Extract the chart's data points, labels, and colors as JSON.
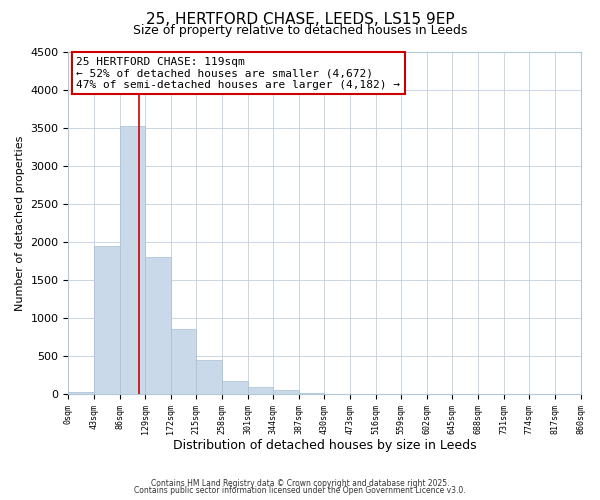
{
  "title": "25, HERTFORD CHASE, LEEDS, LS15 9EP",
  "subtitle": "Size of property relative to detached houses in Leeds",
  "xlabel": "Distribution of detached houses by size in Leeds",
  "ylabel": "Number of detached properties",
  "bar_edges": [
    0,
    43,
    86,
    129,
    172,
    215,
    258,
    301,
    344,
    387,
    430,
    473,
    516,
    559,
    602,
    645,
    688,
    731,
    774,
    817,
    860
  ],
  "bar_heights": [
    30,
    1940,
    3520,
    1800,
    860,
    450,
    175,
    90,
    50,
    20,
    0,
    0,
    0,
    0,
    0,
    0,
    0,
    0,
    0,
    0
  ],
  "bar_color": "#c9d9ea",
  "bar_edgecolor": "#a8bfd4",
  "ylim": [
    0,
    4500
  ],
  "yticks": [
    0,
    500,
    1000,
    1500,
    2000,
    2500,
    3000,
    3500,
    4000,
    4500
  ],
  "xtick_labels": [
    "0sqm",
    "43sqm",
    "86sqm",
    "129sqm",
    "172sqm",
    "215sqm",
    "258sqm",
    "301sqm",
    "344sqm",
    "387sqm",
    "430sqm",
    "473sqm",
    "516sqm",
    "559sqm",
    "602sqm",
    "645sqm",
    "688sqm",
    "731sqm",
    "774sqm",
    "817sqm",
    "860sqm"
  ],
  "vline_x": 119,
  "vline_color": "#cc0000",
  "annotation_title": "25 HERTFORD CHASE: 119sqm",
  "annotation_line1": "← 52% of detached houses are smaller (4,672)",
  "annotation_line2": "47% of semi-detached houses are larger (4,182) →",
  "annotation_box_color": "#ffffff",
  "annotation_box_edgecolor": "#cc0000",
  "footer1": "Contains HM Land Registry data © Crown copyright and database right 2025.",
  "footer2": "Contains public sector information licensed under the Open Government Licence v3.0.",
  "background_color": "#ffffff",
  "grid_color": "#c0d0e0",
  "title_fontsize": 11,
  "subtitle_fontsize": 9,
  "xlabel_fontsize": 9,
  "ylabel_fontsize": 8,
  "xtick_fontsize": 6,
  "ytick_fontsize": 8,
  "annot_fontsize": 8,
  "footer_fontsize": 5.5
}
